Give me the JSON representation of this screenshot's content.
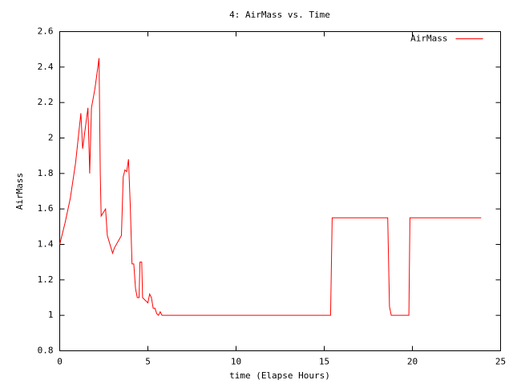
{
  "chart_data": {
    "type": "line",
    "title": "4: AirMass vs. Time",
    "x_label": "time (Elapse Hours)",
    "y_label": "AirMass",
    "legend": "top-right",
    "x": [
      0,
      0.3,
      0.6,
      0.9,
      1.2,
      1.3,
      1.6,
      1.7,
      1.8,
      2.0,
      2.23,
      2.3,
      2.35,
      2.6,
      2.7,
      3.0,
      3.1,
      3.5,
      3.6,
      3.7,
      3.8,
      3.9,
      4.0,
      4.1,
      4.2,
      4.3,
      4.4,
      4.5,
      4.55,
      4.65,
      4.7,
      4.8,
      5.0,
      5.1,
      5.2,
      5.3,
      5.4,
      5.5,
      5.6,
      5.7,
      5.8,
      15.36,
      15.45,
      18.6,
      18.7,
      18.8,
      19.8,
      19.86,
      23.9
    ],
    "series": [
      {
        "name": "AirMass",
        "color": "#ff0000",
        "values": [
          1.4,
          1.52,
          1.66,
          1.86,
          2.14,
          1.94,
          2.17,
          1.8,
          2.17,
          2.28,
          2.45,
          1.8,
          1.56,
          1.6,
          1.45,
          1.35,
          1.38,
          1.45,
          1.78,
          1.82,
          1.81,
          1.88,
          1.62,
          1.29,
          1.29,
          1.15,
          1.1,
          1.1,
          1.3,
          1.3,
          1.1,
          1.09,
          1.07,
          1.12,
          1.1,
          1.04,
          1.04,
          1.01,
          1.0,
          1.02,
          1.0,
          1.0,
          1.55,
          1.55,
          1.05,
          1.0,
          1.0,
          1.55,
          1.55
        ]
      }
    ],
    "xlim": [
      0,
      25
    ],
    "xticks": [
      0,
      5,
      10,
      15,
      20,
      25
    ],
    "ylim": [
      0.8,
      2.6
    ],
    "yticks": [
      0.8,
      1,
      1.2,
      1.4,
      1.6,
      1.8,
      2,
      2.2,
      2.4,
      2.6
    ]
  }
}
